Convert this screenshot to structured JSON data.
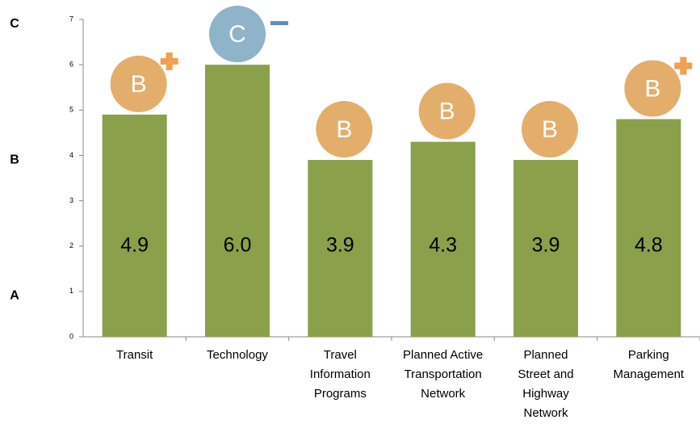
{
  "chart_data": {
    "type": "bar",
    "categories": [
      "Transit",
      "Technology",
      "Travel Information Programs",
      "Planned Active Transportation Network",
      "Planned Street and Highway Network",
      "Parking Management"
    ],
    "values": [
      4.9,
      6.0,
      3.9,
      4.3,
      3.9,
      4.8
    ],
    "value_labels": [
      "4.9",
      "6.0",
      "3.9",
      "4.3",
      "3.9",
      "4.8"
    ],
    "color": "#8aa04a",
    "ylim": [
      0,
      7
    ],
    "yticks": [
      0,
      1,
      2,
      3,
      4,
      5,
      6,
      7
    ],
    "grades": [
      "B",
      "C",
      "B",
      "B",
      "B",
      "B"
    ],
    "grade_modifiers": [
      "+",
      "-",
      null,
      null,
      null,
      "+"
    ],
    "grade_colors": {
      "B": "#e3ae6c",
      "C": "#8fb3c8"
    },
    "grade_axis": [
      {
        "value": 6.9,
        "label": "C"
      },
      {
        "value": 3.9,
        "label": "B"
      },
      {
        "value": 0.9,
        "label": "A"
      }
    ]
  }
}
